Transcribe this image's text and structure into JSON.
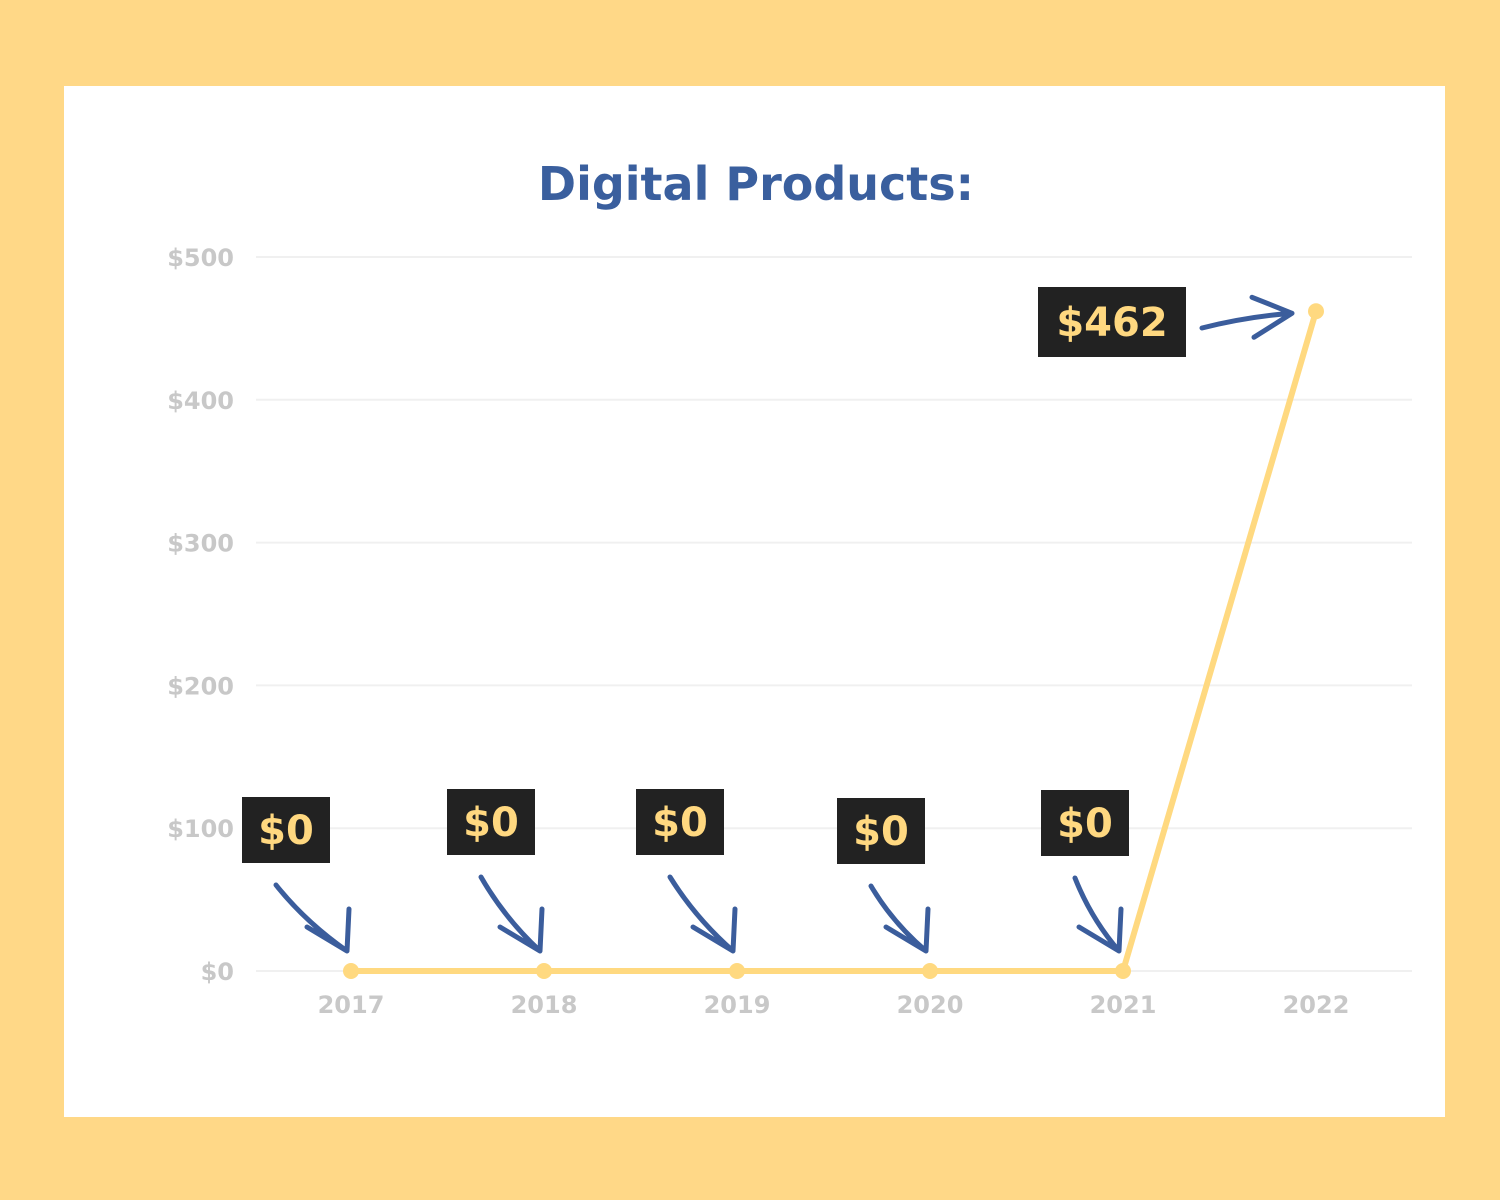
{
  "colors": {
    "background": "#FFD887",
    "card": "#FFFFFF",
    "title": "#3A5F9E",
    "line": "#FFD980",
    "tick_text": "#C8C8C8",
    "grid": "#F0F0F0",
    "callout_bg": "#222222",
    "callout_text": "#FFD880",
    "arrow": "#3B5D9C"
  },
  "chart_data": {
    "type": "line",
    "title": "Digital Products:",
    "xlabel": "",
    "ylabel": "",
    "x": [
      "2017",
      "2018",
      "2019",
      "2020",
      "2021",
      "2022"
    ],
    "series": [
      {
        "values": [
          0,
          0,
          0,
          0,
          0,
          462
        ]
      }
    ],
    "ylim": [
      0,
      500
    ],
    "yticks": [
      0,
      100,
      200,
      300,
      400,
      500
    ],
    "ytick_labels": [
      "$0",
      "$100",
      "$200",
      "$300",
      "$400",
      "$500"
    ],
    "grid": true,
    "annotations": [
      {
        "x": "2017",
        "text": "$0"
      },
      {
        "x": "2018",
        "text": "$0"
      },
      {
        "x": "2019",
        "text": "$0"
      },
      {
        "x": "2020",
        "text": "$0"
      },
      {
        "x": "2021",
        "text": "$0"
      },
      {
        "x": "2022",
        "text": "$462"
      }
    ]
  }
}
